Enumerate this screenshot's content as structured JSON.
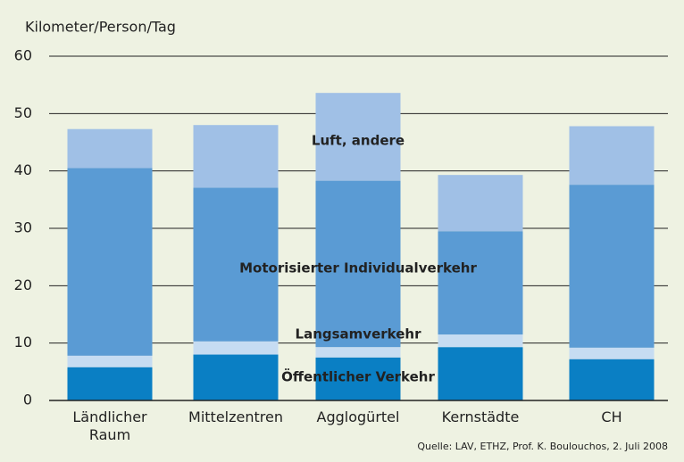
{
  "chart_data": {
    "type": "stacked_bar",
    "y_axis_label": "Kilometer/Person/Tag",
    "categories": [
      "Ländlicher Raum",
      "Mittelzentren",
      "Agglogürtel",
      "Kernstädte",
      "CH"
    ],
    "series": [
      {
        "name": "Öffentlicher Verkehr",
        "color": "#0a7fc4",
        "values": [
          5.8,
          8.0,
          7.5,
          9.3,
          7.2
        ]
      },
      {
        "name": "Langsamverkehr",
        "color": "#c6dcf2",
        "values": [
          2.0,
          2.3,
          1.8,
          2.2,
          2.0
        ]
      },
      {
        "name": "Motorisierter Individualverkehr",
        "color": "#5a9bd4",
        "values": [
          32.7,
          26.8,
          29.0,
          18.0,
          28.4
        ]
      },
      {
        "name": "Luft, andere",
        "color": "#a0c0e6",
        "values": [
          6.8,
          10.9,
          15.3,
          9.8,
          10.2
        ]
      }
    ],
    "ylim": [
      0,
      60
    ],
    "yticks": [
      0,
      10,
      20,
      30,
      40,
      50,
      60
    ],
    "grid": true,
    "source": "Quelle: LAV, ETHZ, Prof. K. Boulouchos, 2. Juli 2008"
  }
}
